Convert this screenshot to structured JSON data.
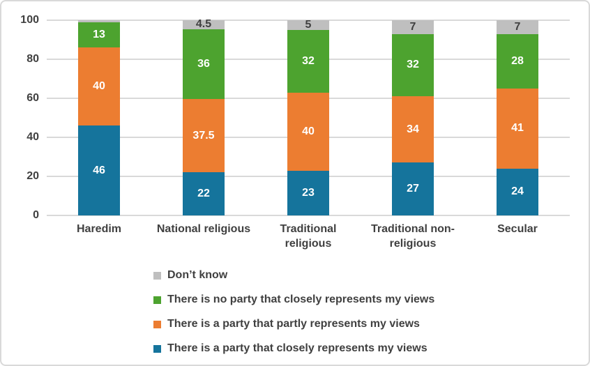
{
  "frame": {
    "background": "#FFFFFF",
    "border_color": "#D9D9D9"
  },
  "chart_data": {
    "type": "bar",
    "subtype": "stacked-column",
    "title": "",
    "categories": [
      "Haredim",
      "National religious",
      "Traditional religious",
      "Traditional non-religious",
      "Secular"
    ],
    "series": [
      {
        "name": "There is a party that closely represents my views",
        "color": "#15749C",
        "label_color": "#FFFFFF",
        "values": [
          46,
          22,
          23,
          27,
          24
        ],
        "labels": [
          "46",
          "22",
          "23",
          "27",
          "24"
        ]
      },
      {
        "name": "There is a party that partly represents my views",
        "color": "#EC7D31",
        "label_color": "#FFFFFF",
        "values": [
          40,
          37.5,
          40,
          34,
          41
        ],
        "labels": [
          "40",
          "37.5",
          "40",
          "34",
          "41"
        ]
      },
      {
        "name": "There is no party that closely represents my views",
        "color": "#4DA32F",
        "label_color": "#FFFFFF",
        "values": [
          13,
          36,
          32,
          32,
          28
        ],
        "labels": [
          "13",
          "36",
          "32",
          "32",
          "28"
        ]
      },
      {
        "name": "Don’t know",
        "color": "#BFBFBF",
        "label_color": "#404040",
        "values": [
          1,
          4.5,
          5,
          7,
          7
        ],
        "labels": [
          "",
          "4.5",
          "5",
          "7",
          "7"
        ]
      }
    ],
    "y_ticks": [
      0,
      20,
      40,
      60,
      80,
      100
    ],
    "ylim": [
      0,
      100
    ],
    "grid": true,
    "gridline_color": "#D9D9D9",
    "axis_text_color": "#404040",
    "legend_position": "bottom",
    "legend_order": [
      3,
      2,
      1,
      0
    ]
  }
}
